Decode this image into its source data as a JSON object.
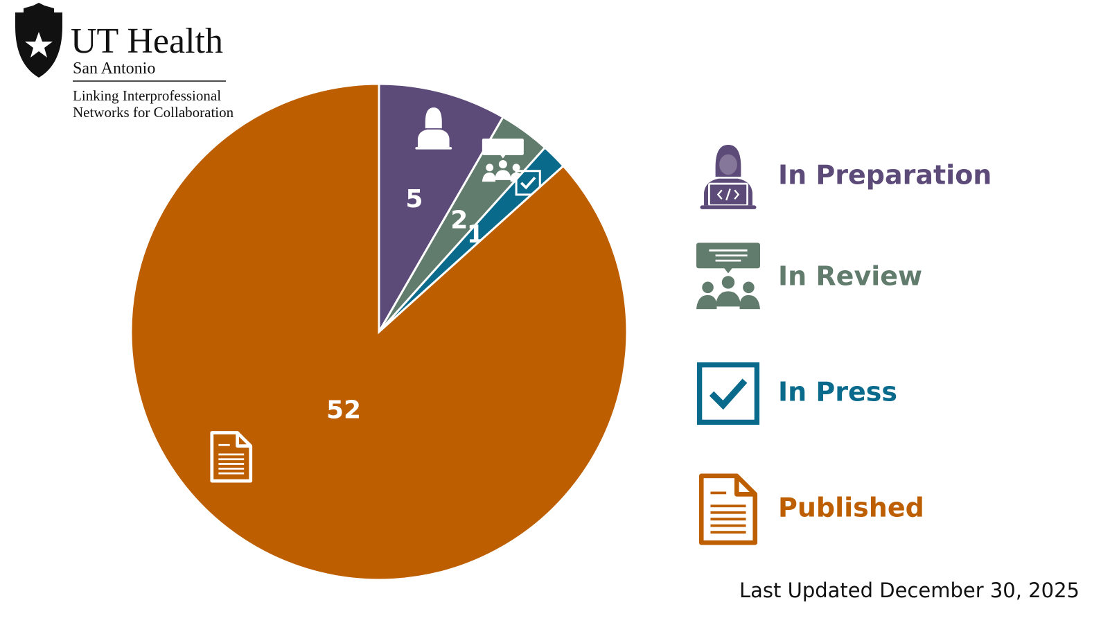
{
  "logo": {
    "name": "UT Health",
    "place": "San Antonio",
    "line1": "Linking Interprofessional",
    "line2": "Networks for Collaboration"
  },
  "chart_data": {
    "type": "pie",
    "categories": [
      "In Preparation",
      "In Review",
      "In Press",
      "Published"
    ],
    "values": [
      5,
      2,
      1,
      52
    ],
    "colors": [
      "#5c4a78",
      "#617b6c",
      "#0a6a8c",
      "#bd5e00"
    ]
  },
  "footer": "Last Updated December 30, 2025"
}
